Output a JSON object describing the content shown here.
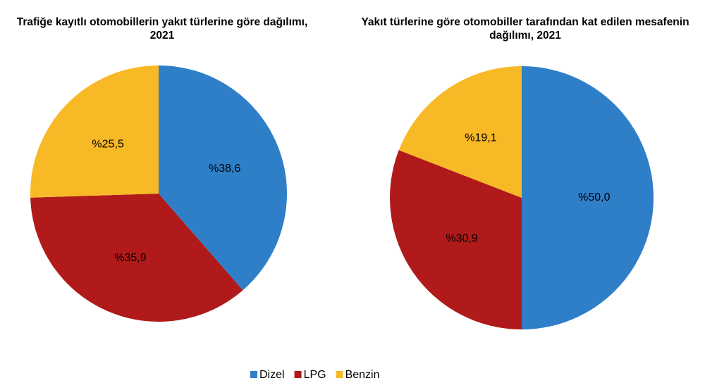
{
  "chart_data": [
    {
      "type": "pie",
      "title": "Trafiğe kayıtlı otomobillerin yakıt türlerine göre dağılımı, 2021",
      "categories": [
        "Dizel",
        "LPG",
        "Benzin"
      ],
      "values": [
        38.6,
        35.9,
        25.5
      ],
      "value_labels": [
        "%38,6",
        "%35,9",
        "%25,5"
      ],
      "colors": [
        "#2e7fc8",
        "#b01a1a",
        "#f8b926"
      ]
    },
    {
      "type": "pie",
      "title": "Yakıt türlerine göre otomobiller tarafından kat edilen mesafenin dağılımı, 2021",
      "categories": [
        "Dizel",
        "LPG",
        "Benzin"
      ],
      "values": [
        50.0,
        30.9,
        19.1
      ],
      "value_labels": [
        "%50,0",
        "%30,9",
        "%19,1"
      ],
      "colors": [
        "#2e7fc8",
        "#b01a1a",
        "#f8b926"
      ]
    }
  ]
}
